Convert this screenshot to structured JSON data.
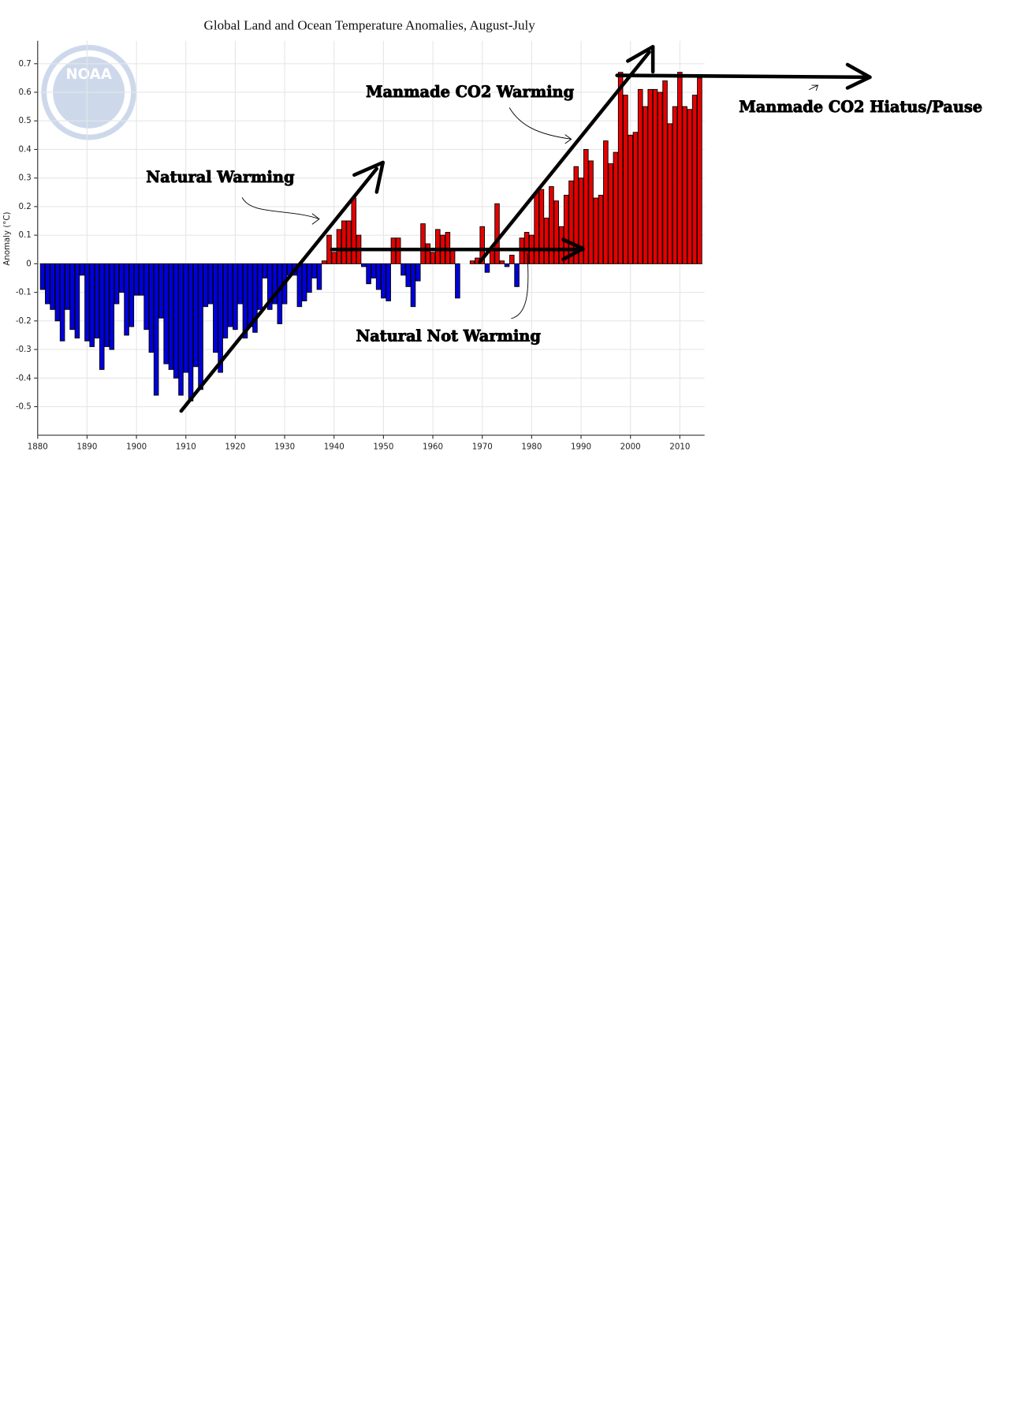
{
  "chart_data": {
    "type": "bar",
    "title": "Global Land and Ocean Temperature Anomalies, August-July",
    "y_label": "Anomaly (°C)",
    "logo": "NOAA",
    "annotations": [
      "Natural Warming",
      "Manmade CO2 Warming",
      "Natural Not Warming",
      "Manmade CO2 Hiatus/Pause"
    ],
    "positive_color": "#e50000",
    "negative_color": "#0000dd",
    "grid": true,
    "xlim": [
      1880,
      2015
    ],
    "xticks": [
      1880,
      1890,
      1900,
      1910,
      1920,
      1930,
      1940,
      1950,
      1960,
      1970,
      1980,
      1990,
      2000,
      2010
    ],
    "ylim": [
      -0.6,
      0.78
    ],
    "yticks": [
      -0.5,
      -0.4,
      -0.3,
      -0.2,
      -0.1,
      0,
      0.1,
      0.2,
      0.3,
      0.4,
      0.5,
      0.6,
      0.7
    ],
    "x": [
      1881,
      1882,
      1883,
      1884,
      1885,
      1886,
      1887,
      1888,
      1889,
      1890,
      1891,
      1892,
      1893,
      1894,
      1895,
      1896,
      1897,
      1898,
      1899,
      1900,
      1901,
      1902,
      1903,
      1904,
      1905,
      1906,
      1907,
      1908,
      1909,
      1910,
      1911,
      1912,
      1913,
      1914,
      1915,
      1916,
      1917,
      1918,
      1919,
      1920,
      1921,
      1922,
      1923,
      1924,
      1925,
      1926,
      1927,
      1928,
      1929,
      1930,
      1931,
      1932,
      1933,
      1934,
      1935,
      1936,
      1937,
      1938,
      1939,
      1940,
      1941,
      1942,
      1943,
      1944,
      1945,
      1946,
      1947,
      1948,
      1949,
      1950,
      1951,
      1952,
      1953,
      1954,
      1955,
      1956,
      1957,
      1958,
      1959,
      1960,
      1961,
      1962,
      1963,
      1964,
      1965,
      1966,
      1967,
      1968,
      1969,
      1970,
      1971,
      1972,
      1973,
      1974,
      1975,
      1976,
      1977,
      1978,
      1979,
      1980,
      1981,
      1982,
      1983,
      1984,
      1985,
      1986,
      1987,
      1988,
      1989,
      1990,
      1991,
      1992,
      1993,
      1994,
      1995,
      1996,
      1997,
      1998,
      1999,
      2000,
      2001,
      2002,
      2003,
      2004,
      2005,
      2006,
      2007,
      2008,
      2009,
      2010,
      2011,
      2012,
      2013,
      2014
    ],
    "values": [
      -0.09,
      -0.14,
      -0.16,
      -0.2,
      -0.27,
      -0.16,
      -0.23,
      -0.26,
      -0.04,
      -0.27,
      -0.29,
      -0.26,
      -0.37,
      -0.29,
      -0.3,
      -0.14,
      -0.1,
      -0.25,
      -0.22,
      -0.11,
      -0.11,
      -0.23,
      -0.31,
      -0.46,
      -0.19,
      -0.35,
      -0.37,
      -0.4,
      -0.46,
      -0.38,
      -0.48,
      -0.36,
      -0.44,
      -0.15,
      -0.14,
      -0.31,
      -0.38,
      -0.26,
      -0.22,
      -0.23,
      -0.14,
      -0.26,
      -0.22,
      -0.24,
      -0.16,
      -0.05,
      -0.16,
      -0.14,
      -0.21,
      -0.14,
      -0.04,
      -0.04,
      -0.15,
      -0.13,
      -0.1,
      -0.05,
      -0.09,
      0.01,
      0.1,
      0.04,
      0.12,
      0.15,
      0.15,
      0.23,
      0.1,
      -0.01,
      -0.07,
      -0.05,
      -0.09,
      -0.12,
      -0.13,
      0.09,
      0.09,
      -0.04,
      -0.08,
      -0.15,
      -0.06,
      0.14,
      0.07,
      0.04,
      0.12,
      0.1,
      0.11,
      0.05,
      -0.12,
      0.0,
      0.0,
      0.01,
      0.02,
      0.13,
      -0.03,
      0.05,
      0.21,
      0.01,
      -0.01,
      0.03,
      -0.08,
      0.09,
      0.11,
      0.1,
      0.25,
      0.26,
      0.16,
      0.27,
      0.22,
      0.13,
      0.24,
      0.29,
      0.34,
      0.3,
      0.4,
      0.36,
      0.23,
      0.24,
      0.43,
      0.35,
      0.39,
      0.67,
      0.59,
      0.45,
      0.46,
      0.61,
      0.55,
      0.61,
      0.61,
      0.6,
      0.64,
      0.49,
      0.55,
      0.67,
      0.55,
      0.54,
      0.59,
      0.65
    ]
  }
}
